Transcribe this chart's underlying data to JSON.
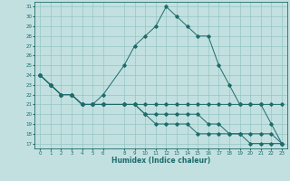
{
  "xlabel": "Humidex (Indice chaleur)",
  "background_color": "#c2e0e0",
  "grid_color": "#8bbfbf",
  "line_color": "#1e6b6b",
  "xlim": [
    -0.5,
    23.5
  ],
  "ylim": [
    16.5,
    31.5
  ],
  "xtick_positions": [
    0,
    1,
    2,
    3,
    4,
    5,
    6,
    8,
    9,
    10,
    11,
    12,
    13,
    14,
    15,
    16,
    17,
    18,
    19,
    20,
    21,
    22,
    23
  ],
  "xtick_labels": [
    "0",
    "1",
    "2",
    "3",
    "4",
    "5",
    "6",
    "8",
    "9",
    "10",
    "11",
    "12",
    "13",
    "14",
    "15",
    "16",
    "17",
    "18",
    "19",
    "20",
    "21",
    "22",
    "23"
  ],
  "ytick_positions": [
    17,
    18,
    19,
    20,
    21,
    22,
    23,
    24,
    25,
    26,
    27,
    28,
    29,
    30,
    31
  ],
  "ytick_labels": [
    "17",
    "18",
    "19",
    "20",
    "21",
    "22",
    "23",
    "24",
    "25",
    "26",
    "27",
    "28",
    "29",
    "30",
    "31"
  ],
  "series": [
    {
      "x": [
        0,
        1,
        2,
        3,
        4,
        5,
        6,
        8,
        9,
        10,
        11,
        12,
        13,
        14,
        15,
        16,
        17,
        18,
        19,
        20,
        21,
        22,
        23
      ],
      "y": [
        24,
        23,
        22,
        22,
        21,
        21,
        22,
        25,
        27,
        28,
        29,
        31,
        30,
        29,
        28,
        28,
        25,
        23,
        21,
        21,
        21,
        21,
        21
      ]
    },
    {
      "x": [
        0,
        1,
        2,
        3,
        4,
        5,
        6,
        8,
        9,
        10,
        11,
        12,
        13,
        14,
        15,
        16,
        17,
        18,
        19,
        20,
        21,
        22,
        23
      ],
      "y": [
        24,
        23,
        22,
        22,
        21,
        21,
        21,
        21,
        21,
        21,
        21,
        21,
        21,
        21,
        21,
        21,
        21,
        21,
        21,
        21,
        21,
        19,
        17
      ]
    },
    {
      "x": [
        0,
        1,
        2,
        3,
        4,
        5,
        6,
        8,
        9,
        10,
        11,
        12,
        13,
        14,
        15,
        16,
        17,
        18,
        19,
        20,
        21,
        22,
        23
      ],
      "y": [
        24,
        23,
        22,
        22,
        21,
        21,
        21,
        21,
        21,
        20,
        20,
        20,
        20,
        20,
        20,
        19,
        19,
        18,
        18,
        18,
        18,
        18,
        17
      ]
    },
    {
      "x": [
        0,
        1,
        2,
        3,
        4,
        5,
        6,
        8,
        9,
        10,
        11,
        12,
        13,
        14,
        15,
        16,
        17,
        18,
        19,
        20,
        21,
        22,
        23
      ],
      "y": [
        24,
        23,
        22,
        22,
        21,
        21,
        21,
        21,
        21,
        20,
        19,
        19,
        19,
        19,
        18,
        18,
        18,
        18,
        18,
        17,
        17,
        17,
        17
      ]
    }
  ]
}
